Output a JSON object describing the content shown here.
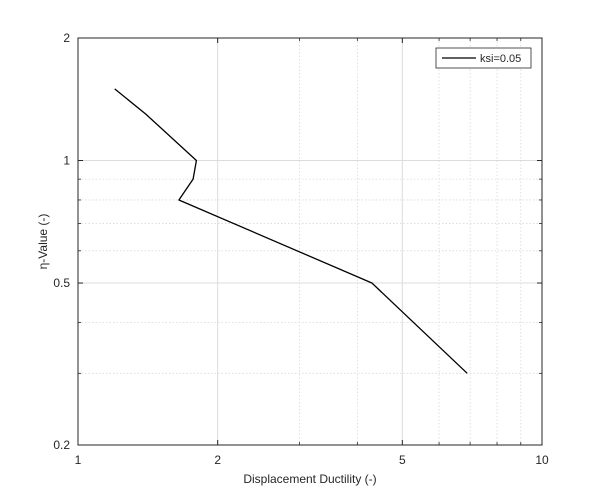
{
  "chart_data": {
    "type": "line",
    "xscale": "log",
    "yscale": "log",
    "xlabel": "Displacement Ductility (-)",
    "ylabel": "η-Value (-)",
    "xlim": [
      1,
      10
    ],
    "ylim": [
      0.2,
      2
    ],
    "x_ticks": [
      1,
      2,
      5,
      10
    ],
    "x_tick_labels": [
      "1",
      "2",
      "5",
      "10"
    ],
    "y_ticks": [
      0.2,
      0.5,
      1,
      2
    ],
    "y_tick_labels": [
      "0.2",
      "0.5",
      "1",
      "2"
    ],
    "grid": true,
    "minor_grid": true,
    "legend_position": "top-right",
    "series": [
      {
        "name": "ksi=0.05",
        "color": "#000000",
        "x": [
          1.2,
          1.4,
          1.8,
          1.77,
          1.65,
          4.3,
          6.9
        ],
        "y": [
          1.5,
          1.3,
          1.0,
          0.9,
          0.8,
          0.5,
          0.3
        ]
      }
    ]
  }
}
